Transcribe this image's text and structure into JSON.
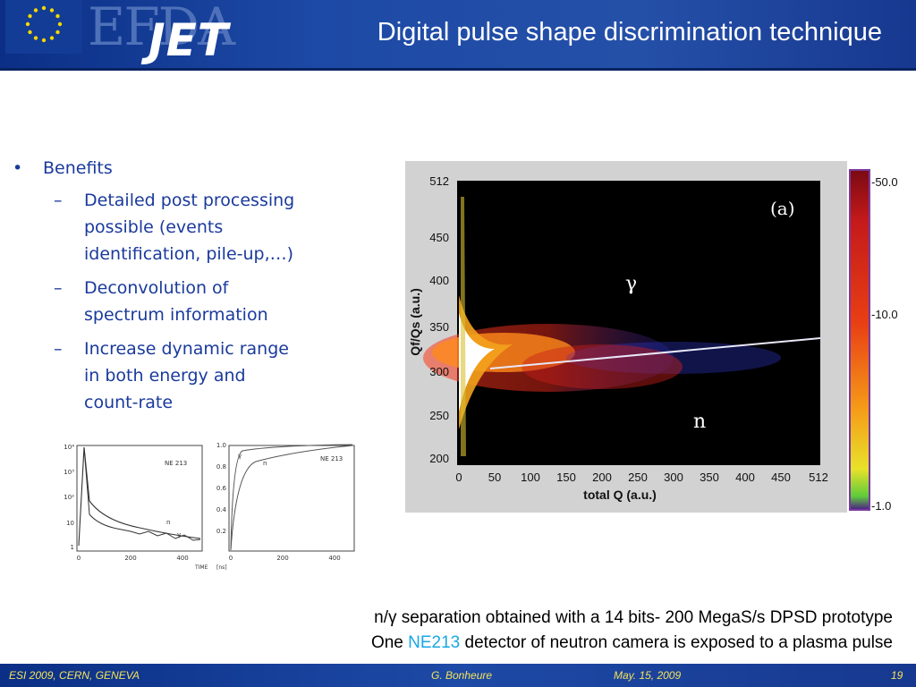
{
  "header": {
    "logo_top": "EFDA",
    "logo_bottom": "JET",
    "title": "Digital pulse shape discrimination technique"
  },
  "bullets": {
    "main": "Benefits",
    "items": [
      [
        "Detailed post processing",
        "possible (events",
        "identification, pile-up,…)"
      ],
      [
        "Deconvolution of",
        "spectrum information"
      ],
      [
        "Increase dynamic range",
        "in both energy and",
        "count-rate"
      ]
    ]
  },
  "heatmap": {
    "panel_label": "(a)",
    "gamma_label": "γ",
    "neutron_label": "n",
    "xlabel": "total Q (a.u.)",
    "ylabel": "Qf/Qs (a.u.)",
    "x_ticks": [
      "0",
      "50",
      "100",
      "150",
      "200",
      "250",
      "300",
      "350",
      "400",
      "450",
      "512"
    ],
    "y_ticks": [
      "512",
      "450",
      "400",
      "350",
      "300",
      "250",
      "200"
    ],
    "colorbar_labels": [
      "-50.0",
      "-10.0",
      "-1.0"
    ]
  },
  "small_plots": {
    "left": {
      "label": "NE 213",
      "y_ticks": [
        "10⁴",
        "10³",
        "10²",
        "10",
        "1"
      ],
      "x_ticks": [
        "0",
        "200",
        "400"
      ],
      "curve_labels": [
        "n",
        "γ"
      ]
    },
    "right": {
      "label": "NE 213",
      "y_ticks": [
        "1.0",
        "0.8",
        "0.6",
        "0.4",
        "0.2"
      ],
      "x_ticks": [
        "0",
        "200",
        "400"
      ],
      "curve_labels": [
        "γ",
        "n"
      ]
    },
    "time_label": "TIME",
    "unit_label": "[ns]"
  },
  "caption": {
    "line1": "n/γ separation obtained with a 14 bits- 200 MegaS/s DPSD prototype",
    "line2_pre": "One ",
    "line2_highlight": "NE213",
    "line2_post": " detector of neutron camera is exposed to a plasma pulse"
  },
  "footer": {
    "event": "ESI 2009, CERN, GENEVA",
    "author": "G. Bonheure",
    "date": "May. 15, 2009",
    "page": "19"
  },
  "colors": {
    "header_blue": "#1d4aa6",
    "bullet_text": "#1a3a9c",
    "footer_text": "#f5e35a",
    "highlight": "#19a7e6"
  }
}
